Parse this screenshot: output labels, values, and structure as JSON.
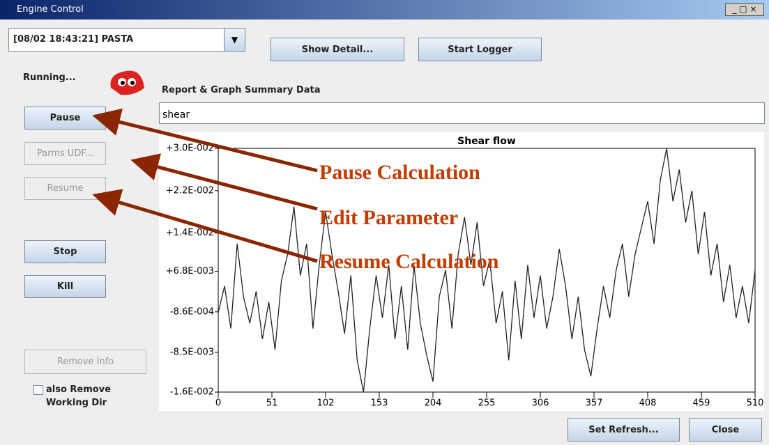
{
  "window": {
    "title": "Engine Control"
  },
  "controls": {
    "job_select": "[08/02 18:43:21] PASTA",
    "show_detail": "Show Detail...",
    "start_logger": "Start Logger",
    "status": "Running...",
    "summary_label": "Report & Graph Summary Data",
    "list_item": "shear",
    "pause": "Pause",
    "parms_udf": "Parms UDF...",
    "resume": "Resume",
    "stop": "Stop",
    "kill": "Kill",
    "remove_info": "Remove Info",
    "remove_dir_lines": [
      "also Remove",
      "Working Dir"
    ],
    "set_refresh": "Set Refresh...",
    "close": "Close"
  },
  "annotations": [
    "Pause Calculation",
    "Edit Parameter",
    "Resume Calculation"
  ],
  "chart_data": {
    "type": "line",
    "title": "Shear flow",
    "color": "#222222",
    "x": [
      0,
      6,
      12,
      18,
      24,
      30,
      36,
      42,
      48,
      54,
      60,
      66,
      72,
      78,
      84,
      90,
      96,
      102,
      108,
      114,
      120,
      126,
      132,
      138,
      144,
      150,
      156,
      162,
      168,
      174,
      180,
      186,
      192,
      198,
      204,
      210,
      216,
      222,
      228,
      234,
      240,
      246,
      252,
      258,
      264,
      270,
      276,
      282,
      288,
      294,
      300,
      306,
      312,
      318,
      324,
      330,
      336,
      342,
      348,
      354,
      360,
      366,
      372,
      378,
      384,
      390,
      396,
      402,
      408,
      414,
      420,
      426,
      432,
      438,
      444,
      450,
      456,
      462,
      468,
      474,
      480,
      486,
      492,
      498,
      504,
      510
    ],
    "values": [
      -0.001,
      0.004,
      -0.004,
      0.012,
      0.002,
      -0.003,
      0.003,
      -0.006,
      0.001,
      -0.008,
      0.005,
      0.01,
      0.019,
      0.006,
      0.012,
      -0.004,
      0.008,
      0.018,
      0.01,
      0.003,
      -0.005,
      0.006,
      -0.01,
      -0.016,
      -0.004,
      0.006,
      -0.002,
      0.008,
      -0.006,
      0.004,
      -0.008,
      0.008,
      -0.003,
      -0.009,
      -0.014,
      0.002,
      0.007,
      -0.004,
      0.01,
      0.017,
      0.008,
      0.016,
      0.004,
      0.009,
      -0.003,
      0.003,
      -0.01,
      0.005,
      -0.006,
      0.008,
      -0.002,
      0.006,
      -0.004,
      0.002,
      0.011,
      0.004,
      -0.006,
      0.002,
      -0.008,
      -0.013,
      -0.004,
      0.004,
      -0.002,
      0.007,
      0.012,
      0.002,
      0.01,
      0.015,
      0.02,
      0.012,
      0.024,
      0.03,
      0.02,
      0.026,
      0.016,
      0.022,
      0.01,
      0.018,
      0.006,
      0.012,
      0.001,
      0.008,
      -0.002,
      0.004,
      -0.003,
      0.007
    ],
    "xlim": [
      0,
      510
    ],
    "xticks": [
      0,
      51,
      102,
      153,
      204,
      255,
      306,
      357,
      408,
      459,
      510
    ],
    "ylim": [
      -0.016,
      0.03
    ],
    "yticks": [
      {
        "value": 0.03,
        "label": "+3.0E-002"
      },
      {
        "value": 0.022,
        "label": "+2.2E-002"
      },
      {
        "value": 0.014,
        "label": "+1.4E-002"
      },
      {
        "value": 0.0068,
        "label": "+6.8E-003"
      },
      {
        "value": -0.00086,
        "label": "-8.6E-004"
      },
      {
        "value": -0.0085,
        "label": "-8.5E-003"
      },
      {
        "value": -0.016,
        "label": "-1.6E-002"
      }
    ]
  }
}
